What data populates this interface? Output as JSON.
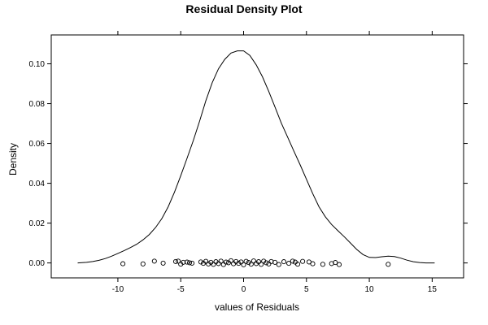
{
  "chart_data": {
    "type": "line",
    "title": "Residual Density Plot",
    "xlabel": "values of Residuals",
    "ylabel": "Density",
    "xlim": [
      -15.3,
      17.5
    ],
    "ylim": [
      -0.0075,
      0.1145
    ],
    "x_ticks": [
      -10,
      -5,
      0,
      5,
      10,
      15
    ],
    "x_tick_labels": [
      "-10",
      "-5",
      "0",
      "5",
      "10",
      "15"
    ],
    "y_ticks": [
      0.0,
      0.02,
      0.04,
      0.06,
      0.08,
      0.1
    ],
    "y_tick_labels": [
      "0.00",
      "0.02",
      "0.04",
      "0.06",
      "0.08",
      "0.10"
    ],
    "grid": false,
    "legend": "none",
    "series": [
      {
        "kind": "density",
        "x": [
          -13.2,
          -12.5,
          -12.0,
          -11.5,
          -11.0,
          -10.5,
          -10.0,
          -9.5,
          -9.0,
          -8.5,
          -8.0,
          -7.5,
          -7.0,
          -6.5,
          -6.0,
          -5.5,
          -5.0,
          -4.5,
          -4.0,
          -3.5,
          -3.0,
          -2.5,
          -2.0,
          -1.5,
          -1.0,
          -0.5,
          0.0,
          0.5,
          1.0,
          1.5,
          2.0,
          2.5,
          3.0,
          3.5,
          4.0,
          4.5,
          5.0,
          5.5,
          6.0,
          6.5,
          7.0,
          7.5,
          8.0,
          8.5,
          9.0,
          9.5,
          10.0,
          10.5,
          11.0,
          11.5,
          12.0,
          12.5,
          13.0,
          13.5,
          14.0,
          14.5,
          15.2
        ],
        "y": [
          0.0,
          0.0003,
          0.0007,
          0.0013,
          0.0022,
          0.0034,
          0.0048,
          0.0062,
          0.0077,
          0.0094,
          0.0116,
          0.0143,
          0.0178,
          0.0223,
          0.0282,
          0.0355,
          0.0438,
          0.0525,
          0.0615,
          0.0712,
          0.0815,
          0.0905,
          0.0975,
          0.1022,
          0.1054,
          0.1065,
          0.1065,
          0.1042,
          0.0995,
          0.0935,
          0.0862,
          0.0783,
          0.0702,
          0.0632,
          0.0562,
          0.0492,
          0.042,
          0.0348,
          0.0282,
          0.0232,
          0.0193,
          0.0162,
          0.0132,
          0.01,
          0.0068,
          0.0042,
          0.0028,
          0.0027,
          0.0031,
          0.0034,
          0.0032,
          0.0024,
          0.0014,
          0.0006,
          0.0002,
          0.0,
          0.0
        ]
      },
      {
        "kind": "rug",
        "x": [
          -9.6,
          -8.0,
          -7.1,
          -6.4,
          -5.4,
          -5.2,
          -5.0,
          -4.8,
          -4.5,
          -4.3,
          -4.1,
          -3.4,
          -3.2,
          -3.0,
          -2.8,
          -2.6,
          -2.4,
          -2.2,
          -2.0,
          -1.8,
          -1.6,
          -1.4,
          -1.2,
          -1.0,
          -0.8,
          -0.6,
          -0.4,
          -0.2,
          0.0,
          0.2,
          0.4,
          0.6,
          0.8,
          1.0,
          1.2,
          1.4,
          1.6,
          1.8,
          2.0,
          2.2,
          2.5,
          2.8,
          3.2,
          3.6,
          3.9,
          4.1,
          4.3,
          4.7,
          5.2,
          5.5,
          6.3,
          7.0,
          7.3,
          7.6,
          11.5
        ],
        "y": [
          -0.0004,
          -0.0005,
          0.0009,
          -0.0001,
          0.0007,
          0.0009,
          -0.0006,
          0.0003,
          0.0004,
          0.0001,
          -0.0001,
          0.0005,
          -0.0002,
          0.0008,
          -0.0005,
          0.0003,
          -0.0007,
          0.0006,
          -0.0003,
          0.0009,
          -0.0008,
          0.0004,
          0.0001,
          0.0011,
          -0.0004,
          0.0007,
          -0.0002,
          0.0005,
          -0.0009,
          0.0008,
          0.0002,
          -0.0006,
          0.001,
          -0.0003,
          0.0006,
          -0.0007,
          0.0009,
          0.0001,
          -0.0005,
          0.0007,
          0.0003,
          -0.0008,
          0.0006,
          -0.0002,
          0.0009,
          0.0004,
          -0.0006,
          0.0008,
          0.0005,
          -0.0004,
          -0.0007,
          -0.0003,
          0.0002,
          -0.0008,
          -0.0007
        ]
      }
    ]
  }
}
